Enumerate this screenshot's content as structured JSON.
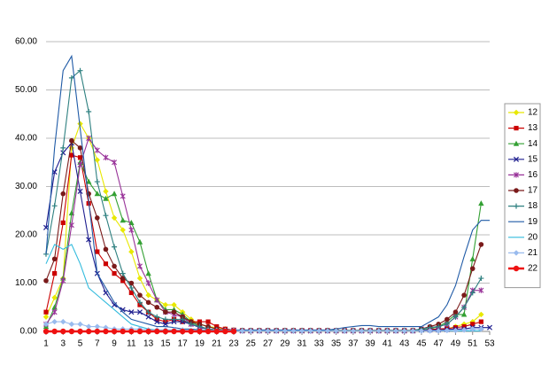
{
  "chart_data": {
    "type": "line",
    "x": [
      1,
      2,
      3,
      4,
      5,
      6,
      7,
      8,
      9,
      10,
      11,
      12,
      13,
      14,
      15,
      16,
      17,
      18,
      19,
      20,
      21,
      22,
      23,
      24,
      25,
      26,
      27,
      28,
      29,
      30,
      31,
      32,
      33,
      34,
      35,
      36,
      37,
      38,
      39,
      40,
      41,
      42,
      43,
      44,
      45,
      46,
      47,
      48,
      49,
      50,
      51,
      52,
      53
    ],
    "xlim": [
      1,
      53
    ],
    "xticks": [
      1,
      3,
      5,
      7,
      9,
      11,
      13,
      15,
      17,
      19,
      21,
      23,
      25,
      27,
      29,
      31,
      33,
      35,
      37,
      39,
      41,
      43,
      45,
      47,
      49,
      51,
      53
    ],
    "ylim": [
      0,
      60
    ],
    "yticks": [
      {
        "value": 0,
        "label": "0.00"
      },
      {
        "value": 10,
        "label": "10.00"
      },
      {
        "value": 20,
        "label": "20.00"
      },
      {
        "value": 30,
        "label": "30.00"
      },
      {
        "value": 40,
        "label": "40.00"
      },
      {
        "value": 50,
        "label": "50.00"
      },
      {
        "value": 60,
        "label": "60.00"
      }
    ],
    "grid": true,
    "legend": "right",
    "series": [
      {
        "name": "12",
        "color": "#e8e800",
        "marker": "diamond",
        "values": [
          3,
          7,
          11,
          38,
          43,
          40,
          35.5,
          29,
          23.5,
          21,
          16.5,
          11,
          7.5,
          6.5,
          5.5,
          5.5,
          4,
          2.5,
          1.5,
          1,
          0.8,
          0.5,
          0.3,
          0.2,
          0.2,
          0.2,
          0.2,
          0.2,
          0.2,
          0.2,
          0.2,
          0.2,
          0.2,
          0.2,
          0.2,
          0.2,
          0.2,
          0.2,
          0.2,
          0.2,
          0.2,
          0.2,
          0.2,
          0.2,
          0.3,
          0.3,
          0.4,
          0.5,
          1,
          1.5,
          2,
          3.5,
          null
        ]
      },
      {
        "name": "13",
        "color": "#cc0000",
        "marker": "square",
        "values": [
          4,
          12,
          22.5,
          36.5,
          36,
          26.5,
          16.5,
          14,
          12,
          10.5,
          8,
          5.5,
          4,
          2.5,
          2,
          2.5,
          2,
          2,
          2,
          2,
          1,
          0.5,
          0.3,
          0.2,
          0.2,
          0.2,
          0.2,
          0.2,
          0.2,
          0.2,
          0.2,
          0.2,
          0.2,
          0.2,
          0.2,
          0.2,
          0.2,
          0.2,
          0.2,
          0.2,
          0.2,
          0.2,
          0.2,
          0.2,
          0.3,
          0.4,
          0.5,
          0.6,
          0.8,
          1,
          1.5,
          2,
          null
        ]
      },
      {
        "name": "14",
        "color": "#33a033",
        "marker": "triangle",
        "values": [
          1,
          5,
          11,
          24.5,
          35,
          31,
          28.5,
          27.5,
          28.5,
          23,
          22.5,
          18.5,
          12,
          6.5,
          4.5,
          4.5,
          3.5,
          2,
          1,
          0.5,
          0.3,
          0.2,
          0.2,
          0.1,
          0.1,
          0.1,
          0.1,
          0.1,
          0.1,
          0.1,
          0.1,
          0.1,
          0.1,
          0.1,
          0.1,
          0.1,
          0.1,
          0.1,
          0.1,
          0.1,
          0.1,
          0.1,
          0.1,
          0.1,
          0.3,
          0.5,
          1,
          2,
          3.5,
          3.5,
          15,
          26.5,
          null
        ]
      },
      {
        "name": "15",
        "color": "#1f1f8f",
        "marker": "x",
        "values": [
          21.5,
          33,
          37,
          39,
          29,
          19,
          12,
          8,
          5.5,
          4.5,
          4,
          4,
          3,
          2,
          1.5,
          2,
          2,
          1.5,
          0.8,
          0.5,
          0.3,
          0.2,
          0.2,
          0.1,
          0.1,
          0.1,
          0.1,
          0.1,
          0.1,
          0.1,
          0.1,
          0.1,
          0.1,
          0.1,
          0.1,
          0.1,
          0.1,
          0.1,
          0.1,
          0.1,
          0.1,
          0.1,
          0.1,
          0.1,
          0.3,
          0.3,
          0.3,
          0.4,
          0.5,
          0.5,
          0.8,
          0.8,
          0.8
        ]
      },
      {
        "name": "16",
        "color": "#993399",
        "marker": "star",
        "values": [
          1.5,
          4,
          10.5,
          22,
          34.5,
          40,
          37.5,
          36,
          35,
          28,
          21,
          13.5,
          10,
          6.5,
          4,
          3.5,
          3,
          1.5,
          1,
          0.5,
          0.3,
          0.2,
          0.2,
          0.1,
          0.1,
          0.1,
          0.1,
          0.1,
          0.1,
          0.1,
          0.1,
          0.1,
          0.1,
          0.1,
          0.1,
          0.1,
          0.1,
          0.1,
          0.1,
          0.1,
          0.1,
          0.1,
          0.1,
          0.1,
          0.5,
          0.8,
          1,
          1.5,
          3,
          5,
          8.5,
          8.5,
          null
        ]
      },
      {
        "name": "17",
        "color": "#7a1a1a",
        "marker": "circle",
        "values": [
          10.5,
          15,
          28.5,
          39.5,
          38,
          28.5,
          23.5,
          17,
          13.5,
          11,
          10,
          7.5,
          6,
          5,
          4,
          4,
          3,
          2,
          1.5,
          1,
          0.5,
          0.3,
          0.2,
          0.2,
          0.2,
          0.2,
          0.2,
          0.2,
          0.2,
          0.2,
          0.2,
          0.2,
          0.2,
          0.2,
          0.2,
          0.2,
          0.2,
          0.2,
          0.2,
          0.2,
          0.2,
          0.2,
          0.2,
          0.2,
          0.5,
          1,
          1.5,
          2.5,
          4,
          7.5,
          13,
          18,
          null
        ]
      },
      {
        "name": "18",
        "color": "#2e8080",
        "marker": "plus",
        "values": [
          16,
          26,
          38,
          52.5,
          54,
          45.5,
          31,
          24,
          17.5,
          12,
          9,
          6,
          4,
          3,
          2.5,
          2.5,
          2.5,
          1.5,
          1,
          0.5,
          0.3,
          0.2,
          0.2,
          0.2,
          0.2,
          0.2,
          0.2,
          0.2,
          0.2,
          0.2,
          0.2,
          0.2,
          0.2,
          0.2,
          0.2,
          0.2,
          0.2,
          0.2,
          0.2,
          0.2,
          0.2,
          0.2,
          0.2,
          0.2,
          0.5,
          0.8,
          1,
          1.5,
          3,
          5,
          8,
          11,
          null
        ]
      },
      {
        "name": "19",
        "color": "#1f5aa6",
        "marker": "none",
        "values": [
          16,
          38,
          54,
          57,
          42,
          27,
          12,
          9,
          6,
          4,
          2.5,
          2,
          1.5,
          1,
          1,
          0.8,
          0.5,
          0.5,
          0.3,
          0.3,
          0.3,
          0.3,
          0.3,
          0.3,
          0.3,
          0.3,
          0.3,
          0.3,
          0.3,
          0.3,
          0.3,
          0.3,
          0.3,
          0.3,
          0.5,
          0.8,
          1,
          1.2,
          1.2,
          1,
          1,
          1,
          1,
          1,
          1,
          2,
          3,
          5.5,
          9.5,
          15.5,
          21,
          23,
          23
        ]
      },
      {
        "name": "20",
        "color": "#33bbdd",
        "marker": "none",
        "values": [
          14,
          18,
          17,
          18,
          14,
          9,
          7.5,
          6,
          4.5,
          3,
          1.5,
          1,
          0.5,
          0.3,
          0.3,
          0.3,
          0.2,
          0.2,
          0.2,
          0.2,
          0.2,
          0.2,
          0.2,
          0.1,
          0.1,
          0.1,
          0.1,
          0.1,
          0.1,
          0.1,
          0.1,
          0.1,
          0.1,
          0.1,
          0.1,
          0.1,
          0.1,
          0.1,
          0.1,
          0.1,
          0.1,
          0.1,
          0.1,
          0.1,
          0.1,
          0.1,
          0.1,
          0.1,
          0.1,
          0.1,
          0.1,
          0.1,
          null
        ]
      },
      {
        "name": "21",
        "color": "#99bbee",
        "marker": "diamond",
        "values": [
          1.5,
          2,
          2,
          1.5,
          1.5,
          1,
          1,
          0.8,
          0.5,
          0.5,
          0.5,
          0.5,
          0.3,
          0.3,
          0.3,
          0.3,
          0.3,
          0.2,
          0.2,
          0.2,
          0.2,
          0.2,
          0.2,
          0.1,
          0.1,
          0.1,
          0.1,
          0.1,
          0.1,
          0.1,
          0.1,
          0.1,
          0.1,
          0.1,
          0.1,
          0.1,
          0.1,
          0.1,
          0.1,
          0.1,
          0.1,
          0.1,
          0.1,
          0.1,
          0.1,
          0.1,
          0.1,
          0.2,
          0.2,
          0.3,
          0.5,
          0.5,
          null
        ]
      },
      {
        "name": "22",
        "color": "#ee1111",
        "marker": "bigcircle",
        "values": [
          0,
          0,
          0,
          0,
          0,
          0,
          0,
          0,
          0,
          0,
          0,
          0,
          0,
          0,
          0,
          0,
          0,
          0,
          0,
          0,
          0,
          0,
          0,
          null,
          null,
          null,
          null,
          null,
          null,
          null,
          null,
          null,
          null,
          null,
          null,
          null,
          null,
          null,
          null,
          null,
          null,
          null,
          null,
          null,
          null,
          null,
          null,
          null,
          null,
          null,
          null,
          null,
          null
        ]
      }
    ]
  }
}
